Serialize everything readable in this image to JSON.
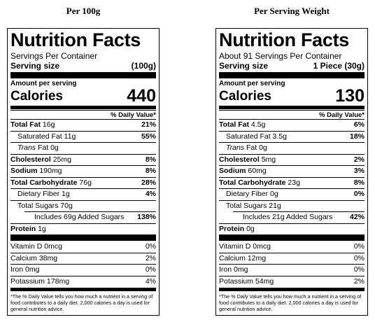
{
  "panels": [
    {
      "heading": "Per 100g",
      "title": "Nutrition Facts",
      "servings": "Servings Per Container",
      "serving_size_label": "Serving size",
      "serving_size_value": "(100g)",
      "amount_label": "Amount per serving",
      "calories_label": "Calories",
      "calories_value": "440",
      "dv_header": "% Daily Value*",
      "total_fat_label": "Total Fat",
      "total_fat_amt": "16g",
      "total_fat_pct": "21%",
      "sat_fat_label": "Saturated Fat 11g",
      "sat_fat_pct": "55%",
      "trans_label": "Trans",
      "trans_amt": "Fat 0g",
      "chol_label": "Cholesterol",
      "chol_amt": "25mg",
      "chol_pct": "8%",
      "sodium_label": "Sodium",
      "sodium_amt": "190mg",
      "sodium_pct": "8%",
      "carb_label": "Total Carbohydrate",
      "carb_amt": "76g",
      "carb_pct": "28%",
      "fiber_label": "Dietary Fiber 1g",
      "fiber_pct": "4%",
      "sugars_label": "Total Sugars 70g",
      "added_label": "Includes 69g Added Sugars",
      "added_pct": "138%",
      "protein_label": "Protein",
      "protein_amt": "1g",
      "vitd_label": "Vitamin D 0mcg",
      "vitd_pct": "0%",
      "calcium_label": "Calcium 38mg",
      "calcium_pct": "2%",
      "iron_label": "Iron 0mg",
      "iron_pct": "0%",
      "potassium_label": "Potassium 178mg",
      "potassium_pct": "4%",
      "footnote": "*The % Daily Value tells you how much a nutrient in a serving of food contributes to a daily diet. 2,000 calories a day is used for general nutrition advice."
    },
    {
      "heading": "Per Serving Weight",
      "title": "Nutrition Facts",
      "servings": "About 91 Servings Per Container",
      "serving_size_label": "Serving size",
      "serving_size_value": "1 Piece (30g)",
      "amount_label": "Amount per serving",
      "calories_label": "Calories",
      "calories_value": "130",
      "dv_header": "% Daily Value*",
      "total_fat_label": "Total Fat",
      "total_fat_amt": "4.5g",
      "total_fat_pct": "6%",
      "sat_fat_label": "Saturated Fat 3.5g",
      "sat_fat_pct": "18%",
      "trans_label": "Trans",
      "trans_amt": "Fat 0g",
      "chol_label": "Cholesterol",
      "chol_amt": "5mg",
      "chol_pct": "2%",
      "sodium_label": "Sodium",
      "sodium_amt": "60mg",
      "sodium_pct": "3%",
      "carb_label": "Total Carbohydrate",
      "carb_amt": "23g",
      "carb_pct": "8%",
      "fiber_label": "Dietary Fiber 0g",
      "fiber_pct": "0%",
      "sugars_label": "Total Sugars 21g",
      "added_label": "Includes 21g Added Sugars",
      "added_pct": "42%",
      "protein_label": "Protein",
      "protein_amt": "0g",
      "vitd_label": "Vitamin D 0mcg",
      "vitd_pct": "0%",
      "calcium_label": "Calcium 12mg",
      "calcium_pct": "0%",
      "iron_label": "Iron 0mg",
      "iron_pct": "0%",
      "potassium_label": "Potassium 54mg",
      "potassium_pct": "2%",
      "footnote": "*The % Daily Value tells you how much a nutrient in a serving of food contributes to a daily diet. 2,000 calories a day is used for general nutrition advice."
    }
  ]
}
